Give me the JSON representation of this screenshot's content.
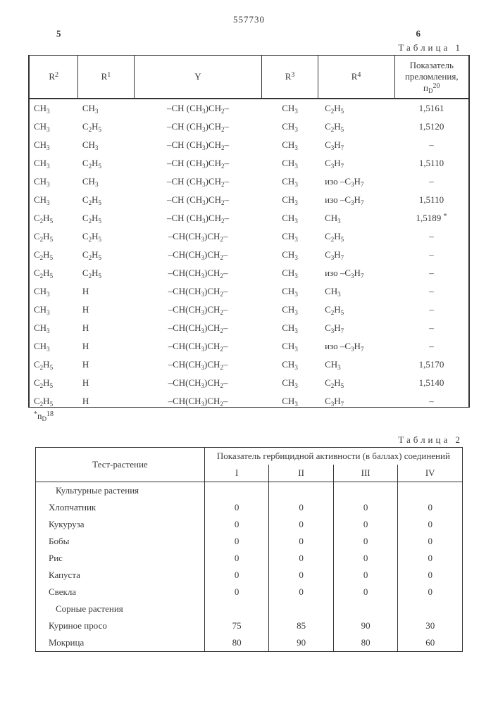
{
  "docnum": "557730",
  "left_colnum": "5",
  "right_colnum": "6",
  "table1": {
    "caption": "Таблица 1",
    "headers": [
      "R<sup>2</sup>",
      "R<sup>1</sup>",
      "Y",
      "R<sup>3</sup>",
      "R<sup>4</sup>",
      "Показатель преломления, п<sub>D</sub><sup>20</sup>"
    ],
    "rows": [
      [
        "CH<sub>3</sub>",
        "CH<sub>3</sub>",
        "–CH (CH<sub>3</sub>)CH<sub>2</sub>–",
        "CH<sub>3</sub>",
        "C<sub>2</sub>H<sub>5</sub>",
        "1,5161"
      ],
      [
        "CH<sub>3</sub>",
        "C<sub>2</sub>H<sub>5</sub>",
        "–CH (CH<sub>3</sub>)CH<sub>2</sub>–",
        "CH<sub>3</sub>",
        "C<sub>2</sub>H<sub>5</sub>",
        "1,5120"
      ],
      [
        "CH<sub>3</sub>",
        "CH<sub>3</sub>",
        "–CH (CH<sub>3</sub>)CH<sub>2</sub>–",
        "CH<sub>3</sub>",
        "C<sub>3</sub>H<sub>7</sub>",
        "–"
      ],
      [
        "CH<sub>3</sub>",
        "C<sub>2</sub>H<sub>5</sub>",
        "–CH (CH<sub>3</sub>)CH<sub>2</sub>–",
        "CH<sub>3</sub>",
        "C<sub>3</sub>H<sub>7</sub>",
        "1,5110"
      ],
      [
        "CH<sub>3</sub>",
        "CH<sub>3</sub>",
        "–CH (CH<sub>3</sub>)CH<sub>2</sub>–",
        "CH<sub>3</sub>",
        "изо –C<sub>3</sub>H<sub>7</sub>",
        "–"
      ],
      [
        "CH<sub>3</sub>",
        "C<sub>2</sub>H<sub>5</sub>",
        "–CH (CH<sub>3</sub>)CH<sub>2</sub>–",
        "CH<sub>3</sub>",
        "изо –C<sub>3</sub>H<sub>7</sub>",
        "1,5110"
      ],
      [
        "C<sub>2</sub>H<sub>5</sub>",
        "C<sub>2</sub>H<sub>5</sub>",
        "–CH (CH<sub>3</sub>)CH<sub>2</sub>–",
        "CH<sub>3</sub>",
        "CH<sub>3</sub>",
        "1,5189 <sup>*</sup>"
      ],
      [
        "C<sub>2</sub>H<sub>5</sub>",
        "C<sub>2</sub>H<sub>5</sub>",
        "–CH(CH<sub>3</sub>)CH<sub>2</sub>–",
        "CH<sub>3</sub>",
        "C<sub>2</sub>H<sub>5</sub>",
        "–"
      ],
      [
        "C<sub>2</sub>H<sub>5</sub>",
        "C<sub>2</sub>H<sub>5</sub>",
        "–CH(CH<sub>3</sub>)CH<sub>2</sub>–",
        "CH<sub>3</sub>",
        "C<sub>3</sub>H<sub>7</sub>",
        "–"
      ],
      [
        "C<sub>2</sub>H<sub>5</sub>",
        "C<sub>2</sub>H<sub>5</sub>",
        "–CH(CH<sub>3</sub>)CH<sub>2</sub>–",
        "CH<sub>3</sub>",
        "изо –C<sub>3</sub>H<sub>7</sub>",
        "–"
      ],
      [
        "CH<sub>3</sub>",
        "H",
        "–CH(CH<sub>3</sub>)CH<sub>2</sub>–",
        "CH<sub>3</sub>",
        "CH<sub>3</sub>",
        "–"
      ],
      [
        "CH<sub>3</sub>",
        "H",
        "–CH(CH<sub>3</sub>)CH<sub>2</sub>–",
        "CH<sub>3</sub>",
        "C<sub>2</sub>H<sub>5</sub>",
        "–"
      ],
      [
        "CH<sub>3</sub>",
        "H",
        "–CH(CH<sub>3</sub>)CH<sub>2</sub>–",
        "CH<sub>3</sub>",
        "C<sub>3</sub>H<sub>7</sub>",
        "–"
      ],
      [
        "CH<sub>3</sub>",
        "H",
        "–CH(CH<sub>3</sub>)CH<sub>2</sub>–",
        "CH<sub>3</sub>",
        "изо –C<sub>3</sub>H<sub>7</sub>",
        "–"
      ],
      [
        "C<sub>2</sub>H<sub>5</sub>",
        "H",
        "–CH(CH<sub>3</sub>)CH<sub>2</sub>–",
        "CH<sub>3</sub>",
        "CH<sub>3</sub>",
        "1,5170"
      ],
      [
        "C<sub>2</sub>H<sub>5</sub>",
        "H",
        "–CH(CH<sub>3</sub>)CH<sub>2</sub>–",
        "CH<sub>3</sub>",
        "C<sub>2</sub>H<sub>5</sub>",
        "1,5140"
      ],
      [
        "C<sub>2</sub>H<sub>5</sub>",
        "H",
        "–CH(CH<sub>3</sub>)CH<sub>2</sub>–",
        "CH<sub>3</sub>",
        "C<sub>3</sub>H<sub>7</sub>",
        "–"
      ]
    ],
    "footnote": "<sup>*</sup>n<sub>D</sub><sup>18</sup>"
  },
  "table2": {
    "caption": "Таблица 2",
    "head_plant": "Тест-растение",
    "head_metric": "Показатель гербицидной активности (в баллах) соединений",
    "cols": [
      "I",
      "II",
      "III",
      "IV"
    ],
    "sections": [
      {
        "title": "Культурные растения",
        "rows": [
          [
            "Хлопчатник",
            "0",
            "0",
            "0",
            "0"
          ],
          [
            "Кукуруза",
            "0",
            "0",
            "0",
            "0"
          ],
          [
            "Бобы",
            "0",
            "0",
            "0",
            "0"
          ],
          [
            "Рис",
            "0",
            "0",
            "0",
            "0"
          ],
          [
            "Капуста",
            "0",
            "0",
            "0",
            "0"
          ],
          [
            "Свекла",
            "0",
            "0",
            "0",
            "0"
          ]
        ]
      },
      {
        "title": "Сорные растения",
        "rows": [
          [
            "Куриное просо",
            "75",
            "85",
            "90",
            "30"
          ],
          [
            "Мокрица",
            "80",
            "90",
            "80",
            "60"
          ]
        ]
      }
    ]
  }
}
